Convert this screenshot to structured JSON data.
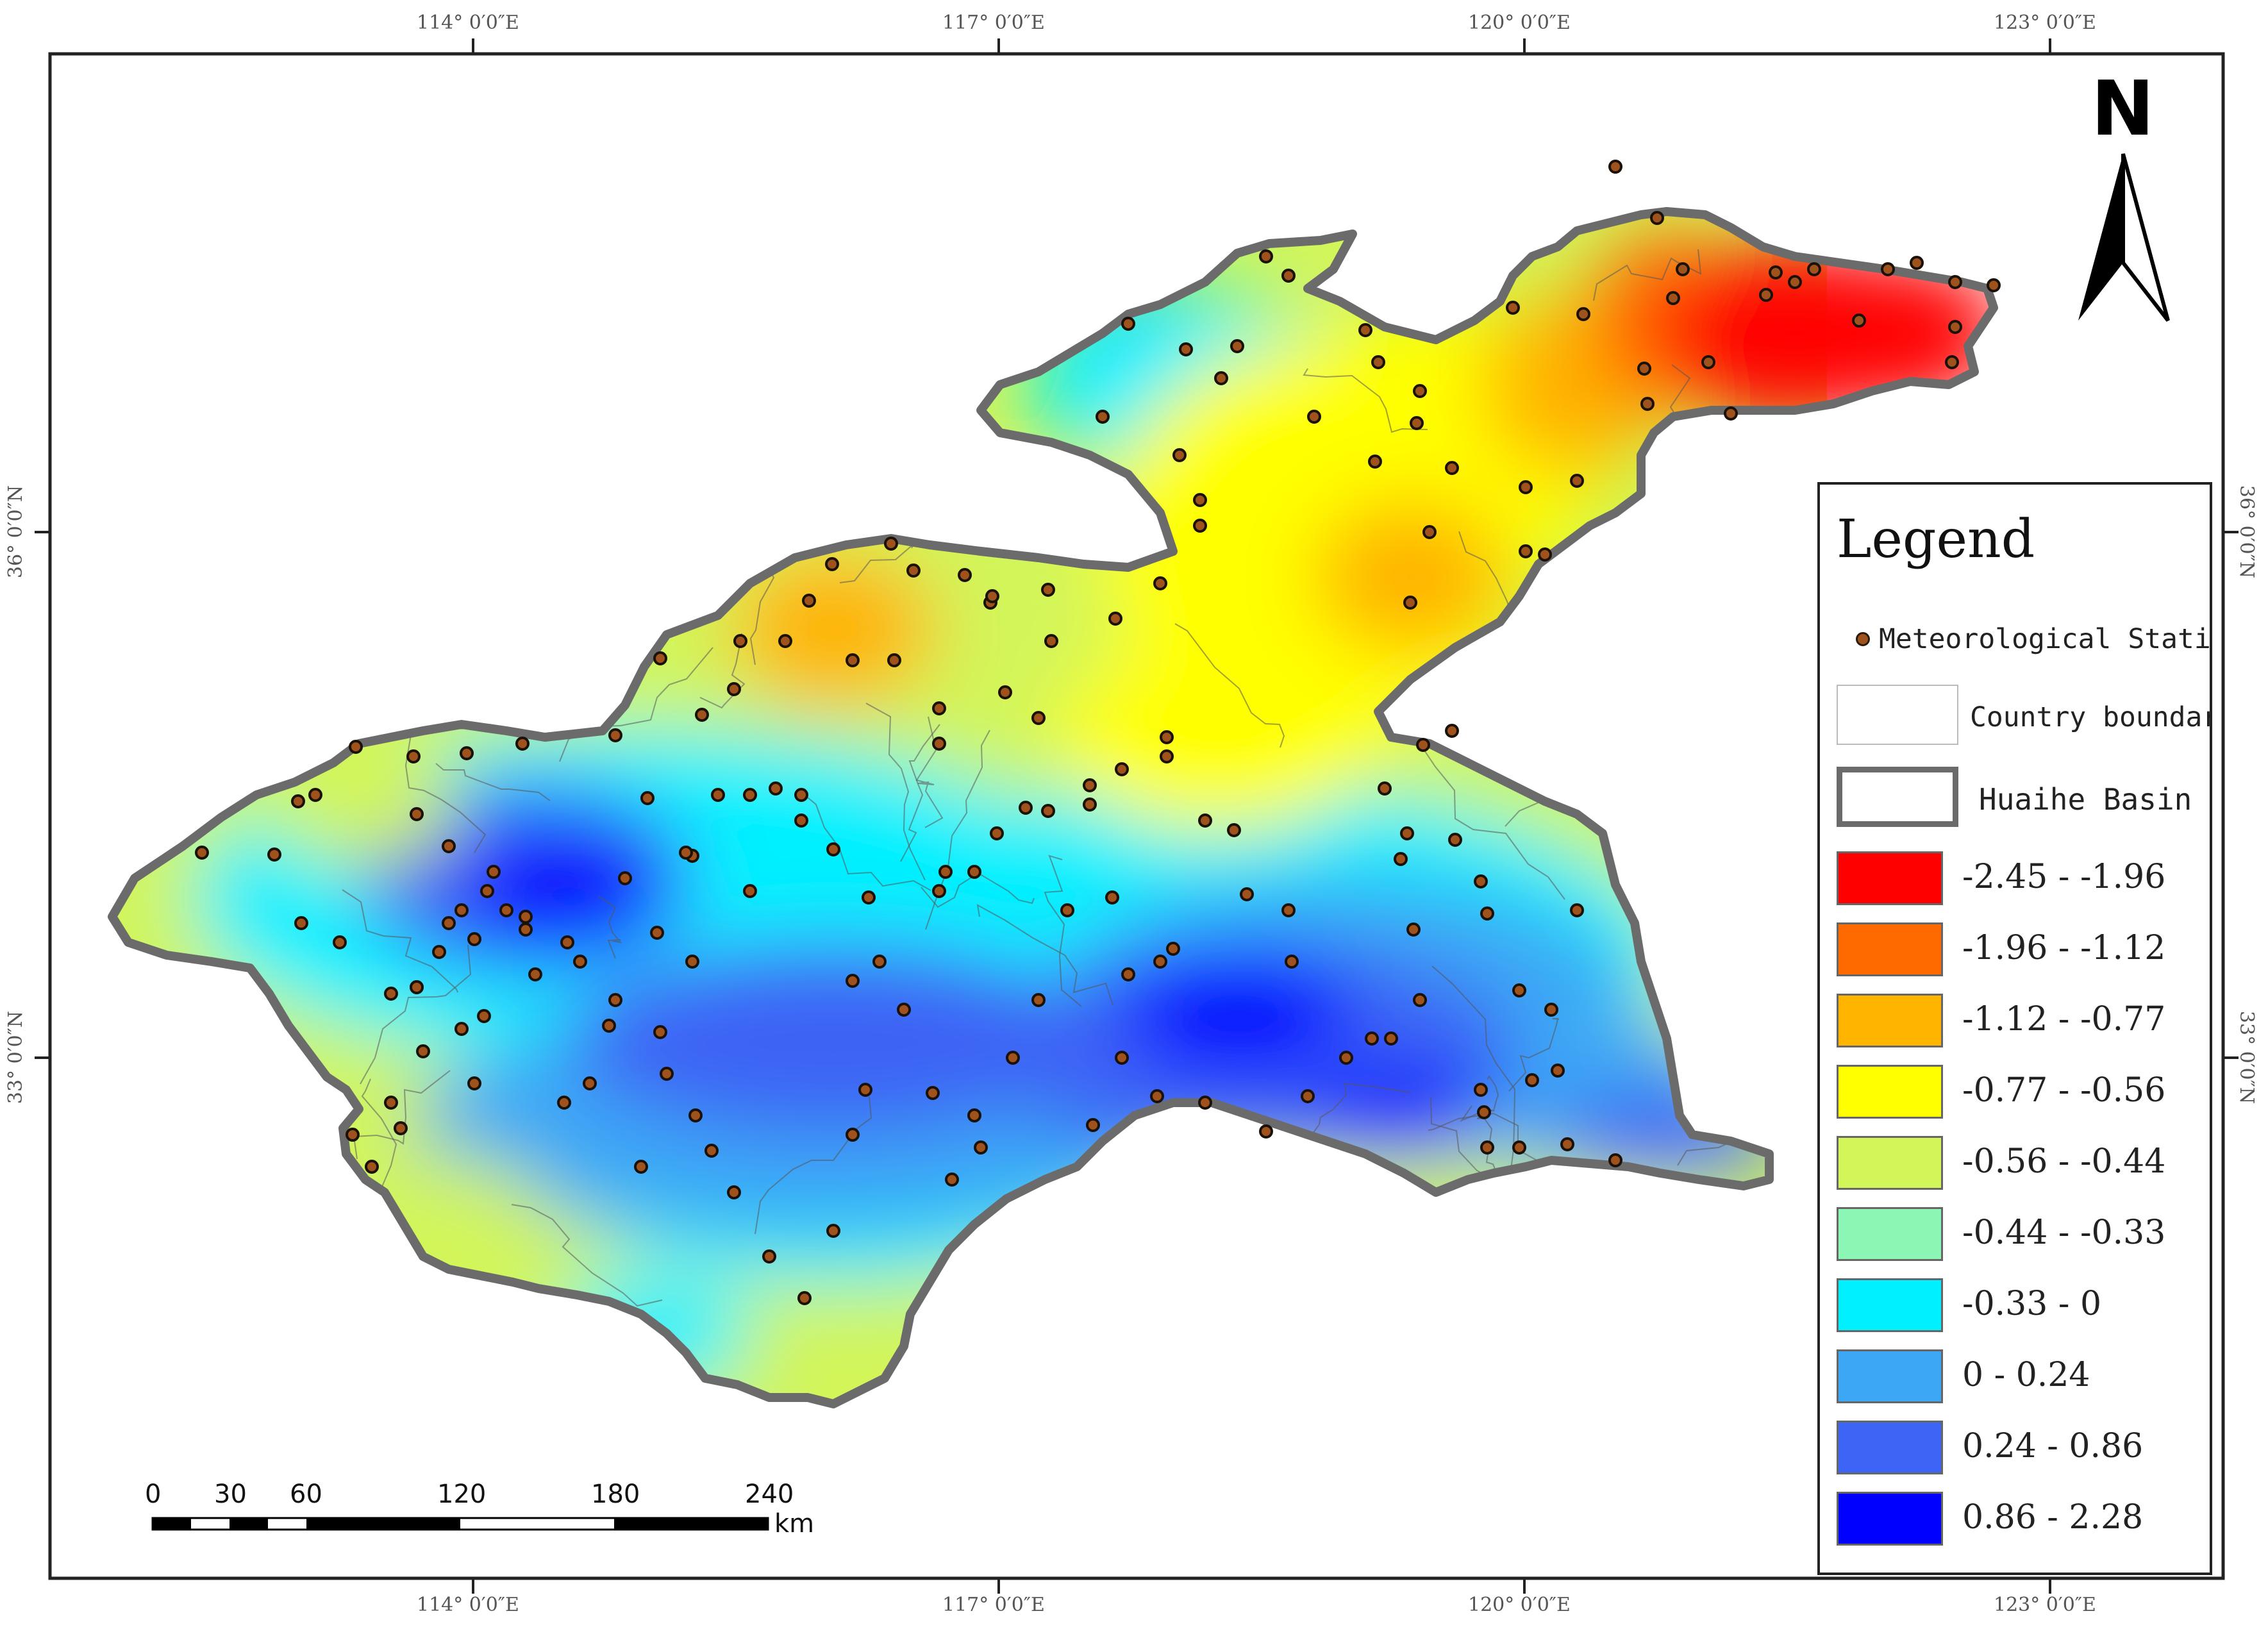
{
  "graticule": {
    "longitudes": [
      "114° 0′0″E",
      "117° 0′0″E",
      "120° 0′0″E",
      "123° 0′0″E"
    ],
    "latitudes": [
      "36° 0′0″N",
      "33° 0′0″N"
    ]
  },
  "legend": {
    "title": "Legend",
    "station_label": "Meteorological Station",
    "country_label": "Country boundary",
    "basin_label": "Huaihe Basin",
    "classes": [
      {
        "label": "-2.45 - -1.96",
        "color": "#ff0000"
      },
      {
        "label": "-1.96 - -1.12",
        "color": "#ff6a00"
      },
      {
        "label": "-1.12 - -0.77",
        "color": "#ffb400"
      },
      {
        "label": "-0.77 - -0.56",
        "color": "#ffff00"
      },
      {
        "label": "-0.56 - -0.44",
        "color": "#d2f55a"
      },
      {
        "label": "-0.44 - -0.33",
        "color": "#8cf7b4"
      },
      {
        "label": "-0.33 - 0",
        "color": "#00f0ff"
      },
      {
        "label": "0 - 0.24",
        "color": "#3ca8f5"
      },
      {
        "label": "0.24 - 0.86",
        "color": "#3c64f5"
      },
      {
        "label": "0.86 - 2.28",
        "color": "#0000ff"
      }
    ]
  },
  "north_arrow": {
    "label": "N"
  },
  "scale_bar": {
    "ticks": [
      "0",
      "30",
      "60",
      "120",
      "180",
      "240"
    ],
    "unit": "km"
  },
  "map": {
    "basin_outline_color": "#6b6b6b",
    "station_color": "#a0521d",
    "palette": {
      "red": "#ff0000",
      "orange": "#ff6a00",
      "amber": "#ffb400",
      "yellow": "#ffff00",
      "yellowgreen": "#d2f55a",
      "mint": "#8cf7b4",
      "cyan": "#00f0ff",
      "sky": "#3ca8f5",
      "blue": "#3c64f5",
      "deepblue": "#0000ff"
    }
  }
}
